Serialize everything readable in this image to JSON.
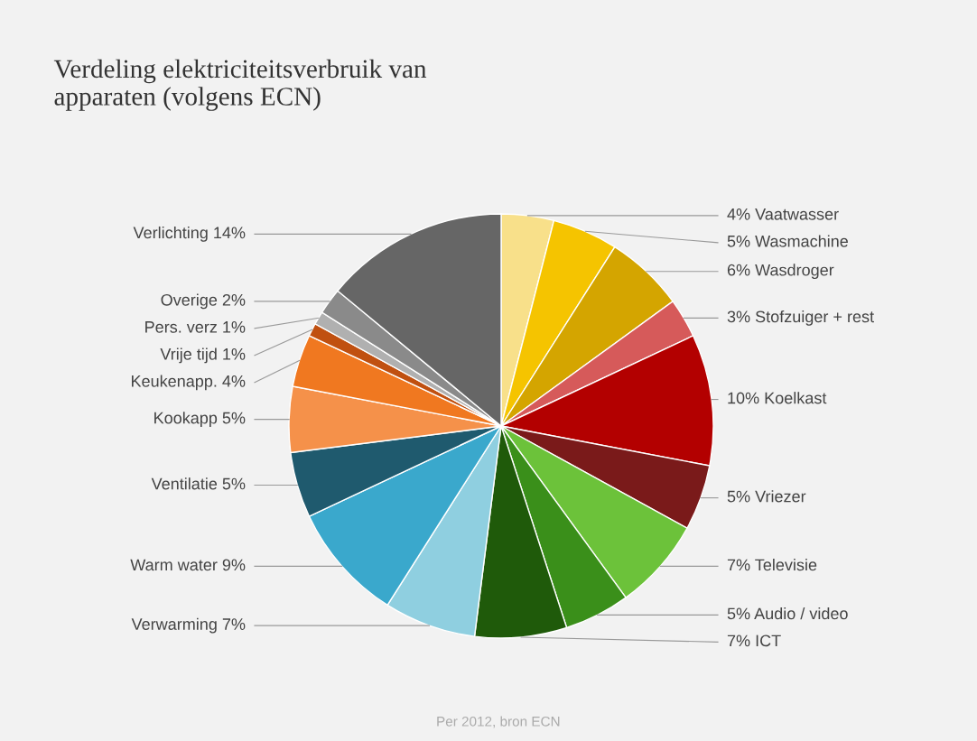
{
  "chart_data": {
    "type": "pie",
    "title": "Verdeling elektriciteitsverbruik van\napparaten (volgens ECN)",
    "categories": [
      "4% Vaatwasser",
      "5% Wasmachine",
      "6% Wasdroger",
      "3% Stofzuiger + rest",
      "10% Koelkast",
      "5% Vriezer",
      "7% Televisie",
      "5% Audio / video",
      "7% ICT",
      "Verwarming 7%",
      "Warm water 9%",
      "Ventilatie 5%",
      "Kookapp 5%",
      "Keukenapp. 4%",
      "Vrije tijd 1%",
      "Pers. verz 1%",
      "Overige 2%",
      "Verlichting 14%"
    ],
    "values": [
      4,
      5,
      6,
      3,
      10,
      5,
      7,
      5,
      7,
      7,
      9,
      5,
      5,
      4,
      1,
      1,
      2,
      14
    ],
    "colors": [
      "#f8e08a",
      "#f5c400",
      "#d4a500",
      "#d65a5a",
      "#b30000",
      "#7a1a1a",
      "#6cc23a",
      "#3a8f1a",
      "#1f5a0a",
      "#8fcfe0",
      "#3aa8cc",
      "#1f5a6e",
      "#f5914a",
      "#f07820",
      "#c05010",
      "#b0b0b0",
      "#8a8a8a",
      "#666666"
    ],
    "annotations": [
      "Per 2012, bron ECN"
    ],
    "legend": false
  }
}
